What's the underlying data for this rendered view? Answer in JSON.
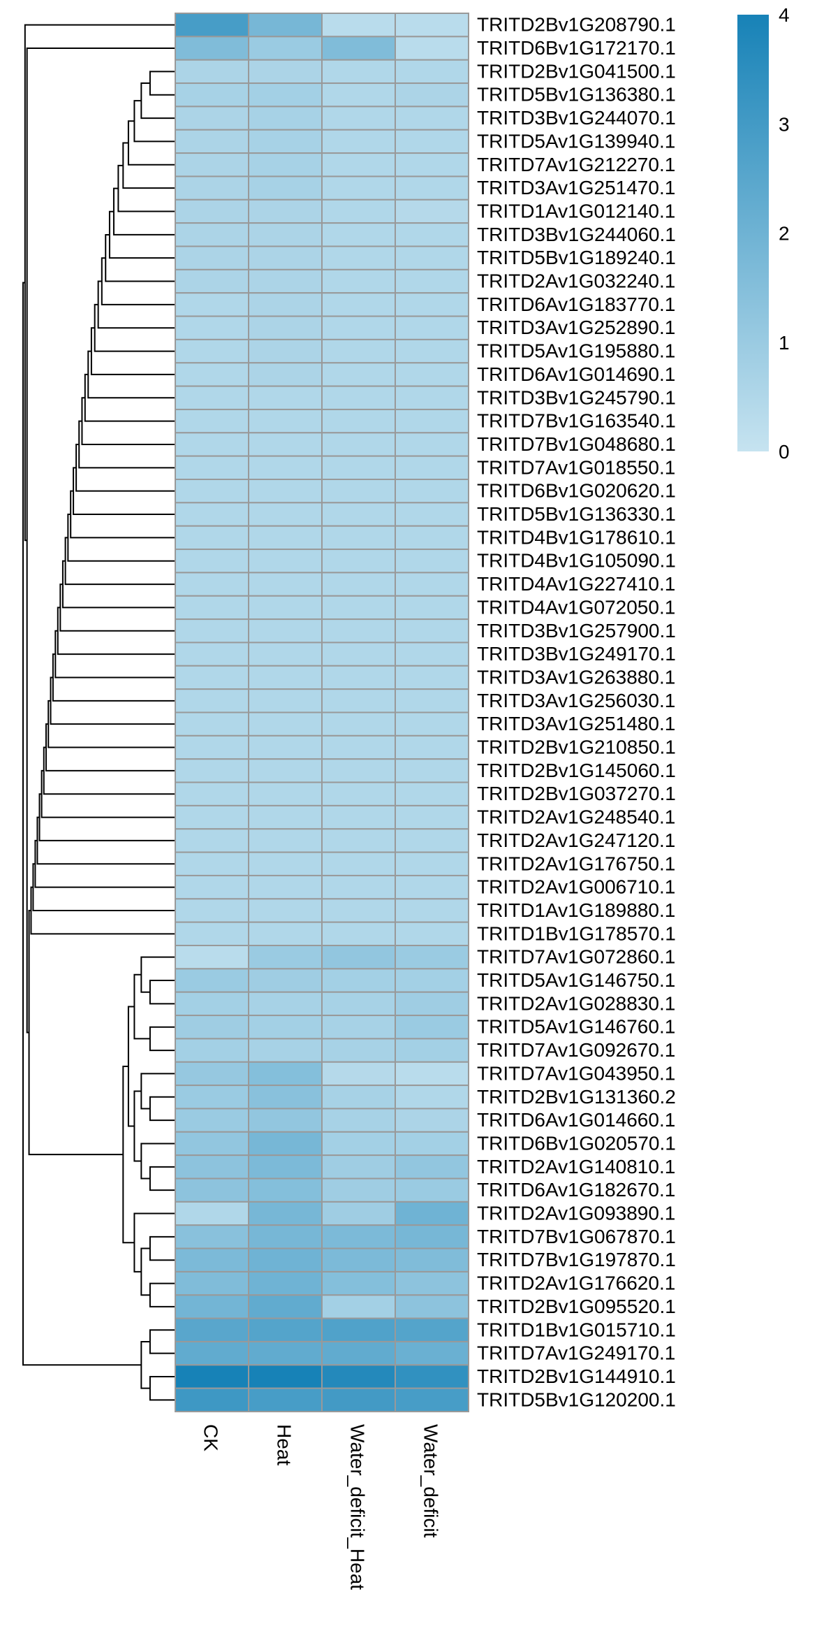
{
  "chart_data": {
    "type": "heatmap",
    "title": "",
    "xlabel": "",
    "ylabel": "",
    "columns": [
      "CK",
      "Heat",
      "Water_deficit_Heat",
      "Water_deficit"
    ],
    "rows": [
      "TRITD2Bv1G208790.1",
      "TRITD6Bv1G172170.1",
      "TRITD2Bv1G041500.1",
      "TRITD5Bv1G136380.1",
      "TRITD3Bv1G244070.1",
      "TRITD5Av1G139940.1",
      "TRITD7Av1G212270.1",
      "TRITD3Av1G251470.1",
      "TRITD1Av1G012140.1",
      "TRITD3Bv1G244060.1",
      "TRITD5Bv1G189240.1",
      "TRITD2Av1G032240.1",
      "TRITD6Av1G183770.1",
      "TRITD3Av1G252890.1",
      "TRITD5Av1G195880.1",
      "TRITD6Av1G014690.1",
      "TRITD3Bv1G245790.1",
      "TRITD7Bv1G163540.1",
      "TRITD7Bv1G048680.1",
      "TRITD7Av1G018550.1",
      "TRITD6Bv1G020620.1",
      "TRITD5Bv1G136330.1",
      "TRITD4Bv1G178610.1",
      "TRITD4Bv1G105090.1",
      "TRITD4Av1G227410.1",
      "TRITD4Av1G072050.1",
      "TRITD3Bv1G257900.1",
      "TRITD3Bv1G249170.1",
      "TRITD3Av1G263880.1",
      "TRITD3Av1G256030.1",
      "TRITD3Av1G251480.1",
      "TRITD2Bv1G210850.1",
      "TRITD2Bv1G145060.1",
      "TRITD2Bv1G037270.1",
      "TRITD2Av1G248540.1",
      "TRITD2Av1G247120.1",
      "TRITD2Av1G176750.1",
      "TRITD2Av1G006710.1",
      "TRITD1Av1G189880.1",
      "TRITD1Bv1G178570.1",
      "TRITD7Av1G072860.1",
      "TRITD5Av1G146750.1",
      "TRITD2Av1G028830.1",
      "TRITD5Av1G146760.1",
      "TRITD7Av1G092670.1",
      "TRITD7Av1G043950.1",
      "TRITD2Bv1G131360.2",
      "TRITD6Av1G014660.1",
      "TRITD6Bv1G020570.1",
      "TRITD2Av1G140810.1",
      "TRITD6Av1G182670.1",
      "TRITD2Av1G093890.1",
      "TRITD7Bv1G067870.1",
      "TRITD7Bv1G197870.1",
      "TRITD2Av1G176620.1",
      "TRITD2Bv1G095520.1",
      "TRITD1Bv1G015710.1",
      "TRITD7Av1G249170.1",
      "TRITD2Bv1G144910.1",
      "TRITD5Bv1G120200.1"
    ],
    "values": [
      [
        2.9,
        1.8,
        0.3,
        0.3
      ],
      [
        1.6,
        1.0,
        1.6,
        0.3
      ],
      [
        0.6,
        0.6,
        0.5,
        0.5
      ],
      [
        0.7,
        0.8,
        0.5,
        0.6
      ],
      [
        0.6,
        0.7,
        0.5,
        0.5
      ],
      [
        0.6,
        0.7,
        0.5,
        0.5
      ],
      [
        0.6,
        0.7,
        0.5,
        0.5
      ],
      [
        0.6,
        0.7,
        0.5,
        0.5
      ],
      [
        0.6,
        0.6,
        0.5,
        0.4
      ],
      [
        0.6,
        0.6,
        0.5,
        0.5
      ],
      [
        0.6,
        0.6,
        0.5,
        0.5
      ],
      [
        0.6,
        0.6,
        0.5,
        0.5
      ],
      [
        0.5,
        0.6,
        0.5,
        0.5
      ],
      [
        0.5,
        0.6,
        0.5,
        0.5
      ],
      [
        0.5,
        0.6,
        0.5,
        0.5
      ],
      [
        0.5,
        0.6,
        0.5,
        0.5
      ],
      [
        0.5,
        0.5,
        0.5,
        0.5
      ],
      [
        0.5,
        0.5,
        0.5,
        0.5
      ],
      [
        0.5,
        0.5,
        0.5,
        0.5
      ],
      [
        0.5,
        0.5,
        0.5,
        0.5
      ],
      [
        0.5,
        0.5,
        0.5,
        0.5
      ],
      [
        0.5,
        0.5,
        0.5,
        0.5
      ],
      [
        0.5,
        0.5,
        0.5,
        0.5
      ],
      [
        0.5,
        0.5,
        0.5,
        0.5
      ],
      [
        0.5,
        0.5,
        0.5,
        0.5
      ],
      [
        0.5,
        0.5,
        0.5,
        0.5
      ],
      [
        0.5,
        0.5,
        0.5,
        0.5
      ],
      [
        0.5,
        0.5,
        0.5,
        0.5
      ],
      [
        0.5,
        0.5,
        0.5,
        0.5
      ],
      [
        0.5,
        0.5,
        0.5,
        0.5
      ],
      [
        0.5,
        0.5,
        0.5,
        0.5
      ],
      [
        0.5,
        0.5,
        0.5,
        0.5
      ],
      [
        0.5,
        0.5,
        0.5,
        0.5
      ],
      [
        0.5,
        0.5,
        0.5,
        0.5
      ],
      [
        0.5,
        0.5,
        0.5,
        0.5
      ],
      [
        0.5,
        0.5,
        0.5,
        0.5
      ],
      [
        0.5,
        0.5,
        0.5,
        0.5
      ],
      [
        0.5,
        0.5,
        0.5,
        0.5
      ],
      [
        0.5,
        0.5,
        0.5,
        0.5
      ],
      [
        0.5,
        0.5,
        0.5,
        0.5
      ],
      [
        0.3,
        1.0,
        1.2,
        1.0
      ],
      [
        1.0,
        0.9,
        0.8,
        0.8
      ],
      [
        0.8,
        0.7,
        0.7,
        0.9
      ],
      [
        0.9,
        0.8,
        0.7,
        1.0
      ],
      [
        0.8,
        0.7,
        0.7,
        0.8
      ],
      [
        1.1,
        1.5,
        0.4,
        0.3
      ],
      [
        1.0,
        1.4,
        0.7,
        0.5
      ],
      [
        1.0,
        1.2,
        0.7,
        0.6
      ],
      [
        1.2,
        1.8,
        0.8,
        0.8
      ],
      [
        1.3,
        1.7,
        0.9,
        1.2
      ],
      [
        1.3,
        1.5,
        0.9,
        1.0
      ],
      [
        0.5,
        1.8,
        0.9,
        2.0
      ],
      [
        1.4,
        1.8,
        1.7,
        1.8
      ],
      [
        1.7,
        2.0,
        1.7,
        1.6
      ],
      [
        1.6,
        2.0,
        1.5,
        1.3
      ],
      [
        1.9,
        2.3,
        0.8,
        1.3
      ],
      [
        2.5,
        2.6,
        2.7,
        2.6
      ],
      [
        2.3,
        2.3,
        2.3,
        2.1
      ],
      [
        4.0,
        4.0,
        3.7,
        3.4
      ],
      [
        3.1,
        2.9,
        3.0,
        2.9
      ]
    ],
    "color_scale": {
      "min": 0,
      "max": 4,
      "low_color": "#c6e3f0",
      "high_color": "#1782b7",
      "ticks": [
        "0",
        "1",
        "2",
        "3",
        "4"
      ]
    },
    "cell_border_color": "#999999",
    "row_dendrogram": true,
    "column_dendrogram": false,
    "legend_position": "top-right"
  }
}
